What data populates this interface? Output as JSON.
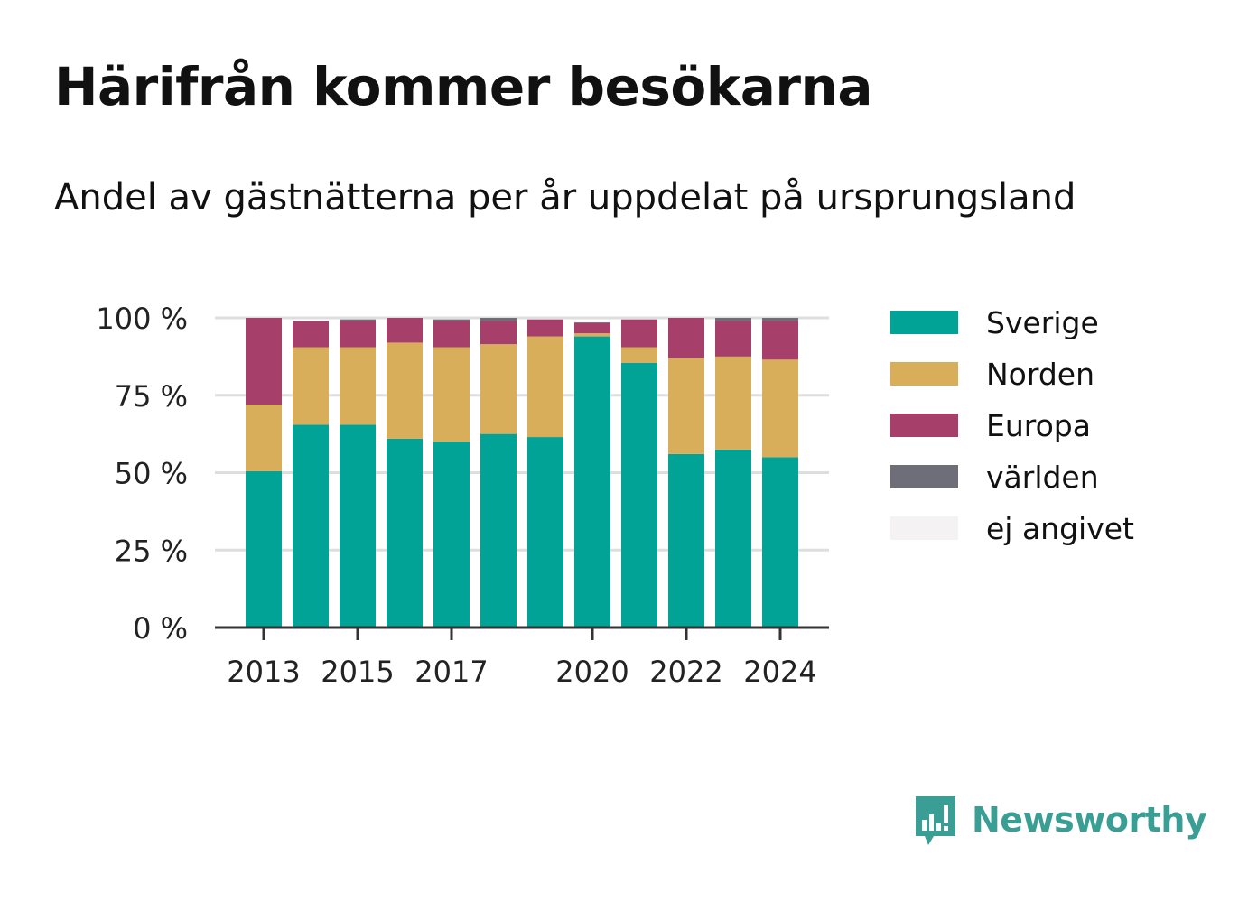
{
  "title": "Härifrån kommer besökarna",
  "subtitle": "Andel av gästnätterna per år uppdelat på ursprungsland",
  "brand": {
    "name": "Newsworthy",
    "icon": "newsworthy-logo-icon",
    "color": "#3a9e94"
  },
  "chart_data": {
    "type": "bar",
    "stacked": true,
    "categories": [
      "2013",
      "2014",
      "2015",
      "2016",
      "2017",
      "2018",
      "2019",
      "2020",
      "2021",
      "2022",
      "2023",
      "2024"
    ],
    "x_tick_labels": [
      "2013",
      "2015",
      "2017",
      "2020",
      "2022",
      "2024"
    ],
    "y_tick_labels": [
      "0 %",
      "25 %",
      "50 %",
      "75 %",
      "100 %"
    ],
    "y_ticks": [
      0,
      25,
      50,
      75,
      100
    ],
    "ylim": [
      0,
      100
    ],
    "grid": true,
    "legend_position": "right",
    "series": [
      {
        "name": "Sverige",
        "color": "#00a396",
        "values": [
          50.5,
          65.5,
          65.5,
          61,
          60,
          62.5,
          61.5,
          94,
          85.5,
          56,
          57.5,
          55
        ]
      },
      {
        "name": "Norden",
        "color": "#d9ae5b",
        "values": [
          21.5,
          25,
          25,
          31,
          30.5,
          29,
          32.5,
          1,
          5,
          31,
          30,
          31.5
        ]
      },
      {
        "name": "Europa",
        "color": "#a6406a",
        "values": [
          28,
          8.5,
          8.5,
          8,
          8.5,
          7.5,
          5.5,
          3.5,
          9,
          13,
          11.5,
          12.5
        ]
      },
      {
        "name": "världen",
        "color": "#6e6e78",
        "values": [
          0,
          0,
          0.5,
          0,
          0.5,
          1,
          0,
          0,
          0,
          0,
          1,
          1
        ]
      },
      {
        "name": "ej angivet",
        "color": "#f4f2f3",
        "values": [
          0,
          0,
          0,
          0,
          0,
          0,
          0,
          0,
          0,
          0,
          0,
          0
        ]
      }
    ]
  }
}
